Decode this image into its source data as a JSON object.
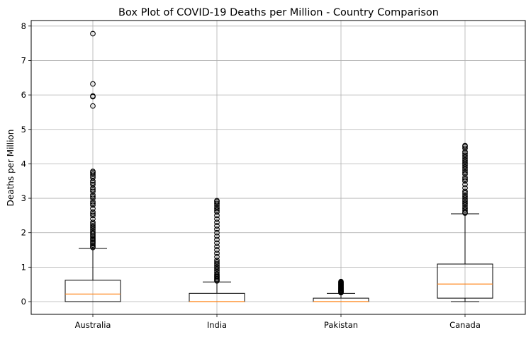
{
  "chart_data": {
    "type": "box",
    "title": "Box Plot of COVID-19 Deaths per Million - Country Comparison",
    "xlabel": "",
    "ylabel": "Deaths per Million",
    "ylim": [
      -0.39,
      8.2
    ],
    "yticks": [
      0,
      1,
      2,
      3,
      4,
      5,
      6,
      7,
      8
    ],
    "grid": true,
    "categories": [
      "Australia",
      "India",
      "Pakistan",
      "Canada"
    ],
    "boxes": [
      {
        "category": "Australia",
        "whisker_low": 0.0,
        "q1": 0.0,
        "median": 0.22,
        "q3": 0.62,
        "whisker_high": 1.55,
        "outliers": [
          1.57,
          1.6,
          1.64,
          1.68,
          1.72,
          1.76,
          1.8,
          1.84,
          1.88,
          1.92,
          1.96,
          2.0,
          2.05,
          2.1,
          2.15,
          2.2,
          2.25,
          2.3,
          2.4,
          2.5,
          2.55,
          2.6,
          2.7,
          2.8,
          2.85,
          2.9,
          3.0,
          3.05,
          3.1,
          3.2,
          3.25,
          3.3,
          3.4,
          3.45,
          3.5,
          3.6,
          3.65,
          3.7,
          3.75,
          3.78,
          5.68,
          5.95,
          5.97,
          6.32,
          7.78
        ]
      },
      {
        "category": "India",
        "whisker_low": 0.0,
        "q1": 0.0,
        "median": 0.0,
        "q3": 0.24,
        "whisker_high": 0.57,
        "outliers": [
          0.6,
          0.63,
          0.66,
          0.7,
          0.73,
          0.76,
          0.8,
          0.85,
          0.9,
          0.95,
          1.0,
          1.05,
          1.1,
          1.15,
          1.2,
          1.3,
          1.4,
          1.5,
          1.6,
          1.7,
          1.8,
          1.9,
          2.0,
          2.1,
          2.2,
          2.3,
          2.4,
          2.5,
          2.6,
          2.65,
          2.7,
          2.75,
          2.8,
          2.85,
          2.9,
          2.93
        ]
      },
      {
        "category": "Pakistan",
        "whisker_low": 0.0,
        "q1": 0.0,
        "median": 0.0,
        "q3": 0.1,
        "whisker_high": 0.24,
        "outliers": [
          0.26,
          0.28,
          0.3,
          0.32,
          0.34,
          0.36,
          0.38,
          0.4,
          0.42,
          0.44,
          0.46,
          0.48,
          0.5,
          0.52,
          0.54,
          0.56,
          0.58
        ]
      },
      {
        "category": "Canada",
        "whisker_low": 0.0,
        "q1": 0.1,
        "median": 0.51,
        "q3": 1.09,
        "whisker_high": 2.55,
        "outliers": [
          2.57,
          2.6,
          2.65,
          2.7,
          2.75,
          2.8,
          2.85,
          2.9,
          2.95,
          3.0,
          3.05,
          3.1,
          3.15,
          3.2,
          3.3,
          3.4,
          3.5,
          3.55,
          3.6,
          3.7,
          3.75,
          3.8,
          3.85,
          3.9,
          3.95,
          4.0,
          4.05,
          4.1,
          4.15,
          4.2,
          4.25,
          4.3,
          4.35,
          4.45,
          4.5,
          4.53
        ]
      }
    ],
    "colors": {
      "box": "#000000",
      "median": "#ff7f0e",
      "grid": "#b0b0b0",
      "outlier": "#000000"
    }
  }
}
